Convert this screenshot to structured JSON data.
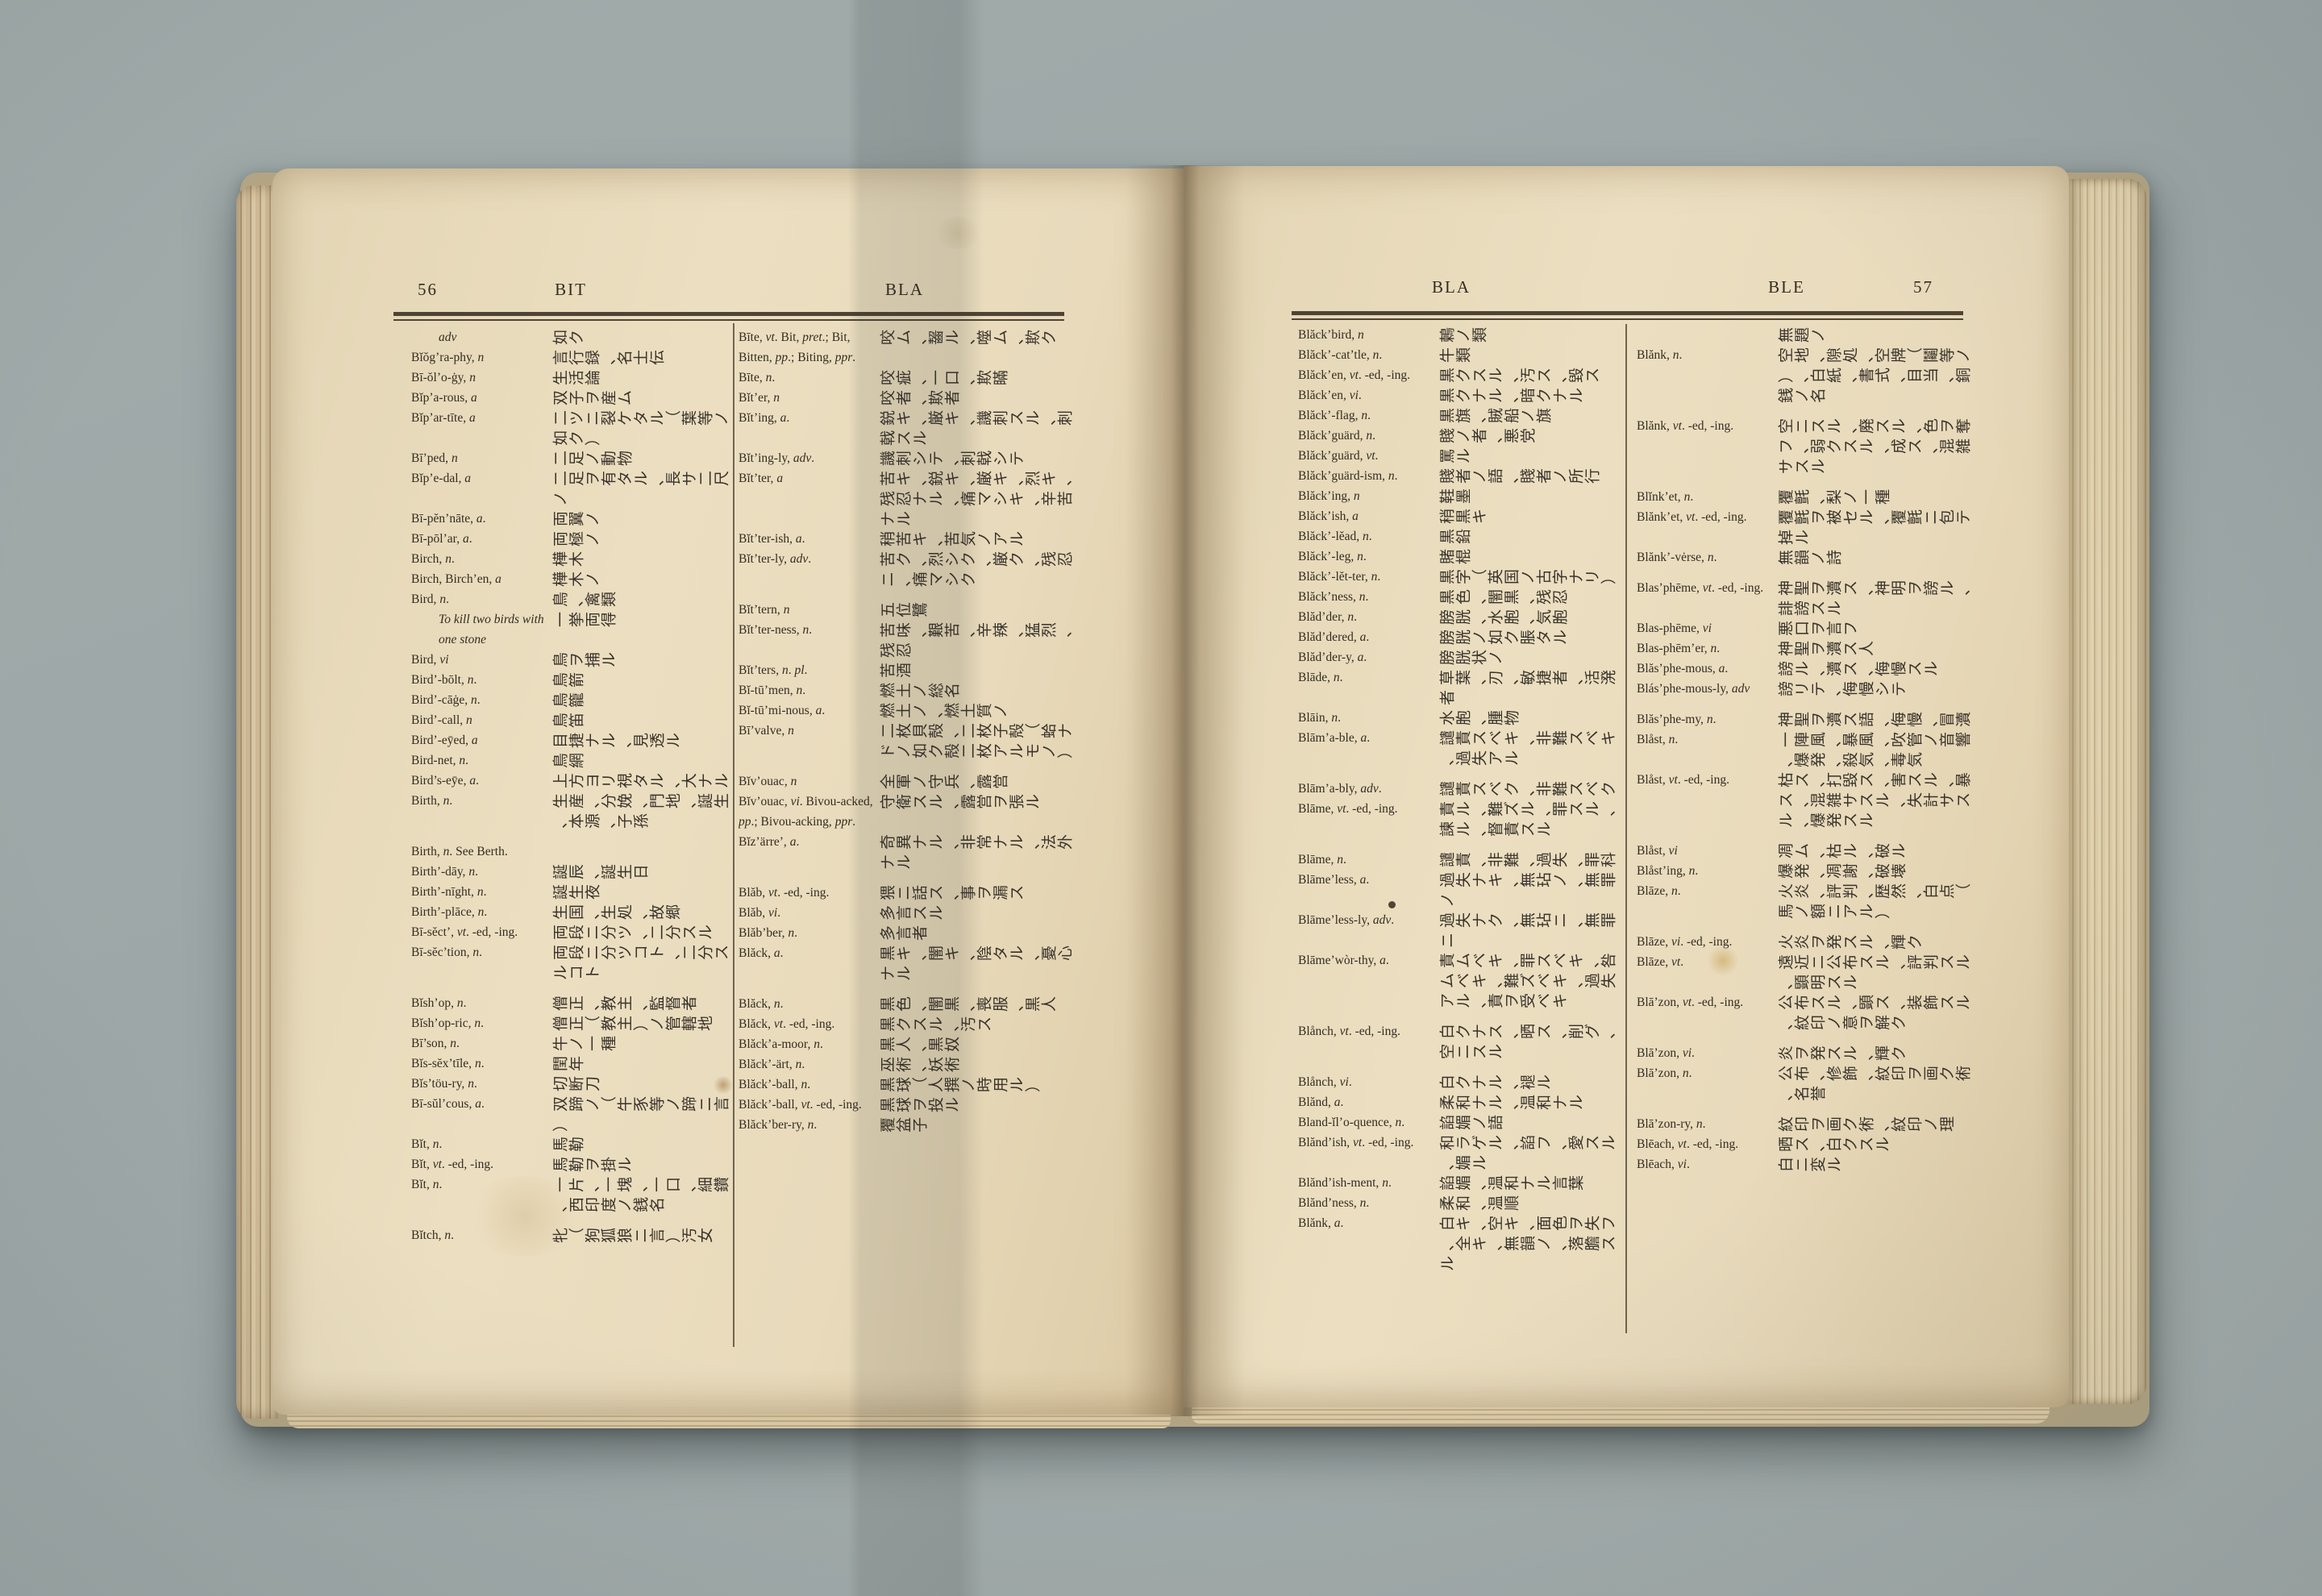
{
  "colors": {
    "bg": "#9faaa9",
    "page": "#e9dcbd",
    "ink": "#332c22",
    "rule": "#42382a",
    "edge": "#cab58e",
    "stain": "#b98f3e"
  },
  "book": {
    "left_page": {
      "number": "56",
      "head_left": "BIT",
      "head_right": "BLA",
      "columns": {
        "col1": [
          {
            "h": "*adv*",
            "d": "如ク",
            "i": 1
          },
          {
            "h": "Bĭŏg’ra-phy, *n*",
            "d": "言行録、名士伝"
          },
          {
            "h": "Bī-ŏl’o-ġy, *n*",
            "d": "生活論"
          },
          {
            "h": "Bĭp’a-rous, *a*",
            "d": "双子ヲ産ム"
          },
          {
            "h": "Bĭp’ar-tīte, *a*",
            "d": "二ツニ裂ケタル（葉等ノ如ク）"
          },
          {
            "h": "Bī’ped, *n*",
            "d": "二足ノ動物"
          },
          {
            "h": "Bĭp’e-dal, *a*",
            "d": "二足ヲ有タル、長サ二尺ノ"
          },
          {
            "h": "Bī-pĕn’nāte, *a*.",
            "d": "両翼ノ"
          },
          {
            "h": "Bī-pōl’ar, *a*.",
            "d": "両極ノ"
          },
          {
            "h": "Birch, *n*.",
            "d": "樺木"
          },
          {
            "h": "Birch, Birch’en, *a*",
            "d": "樺木ノ"
          },
          {
            "h": "Bird, *n*.",
            "d": "鳥、禽類"
          },
          {
            "h": "*To kill two birds with one stone*",
            "d": "一挙両得",
            "i": 1
          },
          {
            "h": "Bird, *vi*",
            "d": "鳥ヲ捕ル"
          },
          {
            "h": "Bird’-bōlt, *n*.",
            "d": "鳥箭"
          },
          {
            "h": "Bird’-cāġe, *n*.",
            "d": "鳥籠"
          },
          {
            "h": "Bird’-call, *n*",
            "d": "鳥笛"
          },
          {
            "h": "Bird’-eȳed, *a*",
            "d": "目捷ナル、見透ル"
          },
          {
            "h": "Bird-net, *n*.",
            "d": "鳥網"
          },
          {
            "h": "Bird’s-eȳe, *a*.",
            "d": "上方ヨリ視タル、大ナル"
          },
          {
            "h": "Birth, *n*.",
            "d": "生産、分娩、門地、誕生、本源、子孫"
          },
          {
            "h": "Birth, *n*. See Berth.",
            "d": "",
            "g": 1
          },
          {
            "h": "Birth’-dāy, *n*.",
            "d": "誕辰、誕生日"
          },
          {
            "h": "Birth’-nīght, *n*.",
            "d": "誕生夜"
          },
          {
            "h": "Birth’-plāce, *n*.",
            "d": "生国、生処、故郷"
          },
          {
            "h": "Bī-sĕct’, *vt*. -ed, -ing.",
            "d": "両段ニ分ツ、二分スル"
          },
          {
            "h": "Bī-sĕc’tion, *n*.",
            "d": "両段ニ分ツコト、二分スルコト"
          },
          {
            "h": "Bĭsh’op, *n*.",
            "d": "僧正、教主、監督者",
            "g": 1
          },
          {
            "h": "Bĭsh’op-ric, *n*.",
            "d": "僧正（教主）ノ管轄地"
          },
          {
            "h": "Bī’son, *n*.",
            "d": "牛ノ一種"
          },
          {
            "h": "Bĭs-sĕx’tīle, *n*.",
            "d": "閏年"
          },
          {
            "h": "Bĭs’töu-ry, *n*.",
            "d": "切断刀"
          },
          {
            "h": "Bī-sŭl’cous, *a*.",
            "d": "双蹄ノ（牛豕等ノ蹄ニ言）"
          },
          {
            "h": "Bĭt, *n*.",
            "d": "馬勒"
          },
          {
            "h": "Bĭt, *vt*. -ed, -ing.",
            "d": "馬勒ヲ掛ル"
          },
          {
            "h": "Bĭt, *n*.",
            "d": "一片、一塊、一口、細鑽、西印度ノ銭名"
          },
          {
            "h": "Bĭtch, *n*.",
            "d": "牝（狗狐狼ニ言）汚女",
            "g": 1
          }
        ],
        "col2": [
          {
            "h": "Bīte, *vt*. Bit, *pret*.; Bit, Bitten, *pp*.; Biting, *ppr*.",
            "d": "咬ム、齧ル、噬ム、欺ク"
          },
          {
            "h": "Bīte, *n*.",
            "d": "咬疵、一口、欺瞞"
          },
          {
            "h": "Bĭt’er, *n*",
            "d": "咬者、欺者"
          },
          {
            "h": "Bĭt’ing, *a*.",
            "d": "鋭キ、厳キ、譏刺スル、刺戟スル"
          },
          {
            "h": "Bĭt’ing-ly, *adv*.",
            "d": "譏刺シテ、刺戟シテ"
          },
          {
            "h": "Bĭt’ter, *a*",
            "d": "苦キ、鋭キ、厳キ、烈キ、残忍ナル、痛マシキ、辛苦ナル"
          },
          {
            "h": "Bĭt’ter-ish, *a*.",
            "d": "稍苦キ、苦気ノアル"
          },
          {
            "h": "Bĭt’ter-ly, *adv*.",
            "d": "苦ク、烈シク、厳ク、残忍ニ、痛マシク"
          },
          {
            "h": "Bĭt’tern, *n*",
            "d": "五位鷺",
            "g": 1
          },
          {
            "h": "Bĭt’ter-ness, *n*.",
            "d": "苦味、艱苦、辛辣、猛烈、残忍"
          },
          {
            "h": "Bĭt’ters, *n*. *pl*.",
            "d": "苦酒"
          },
          {
            "h": "Bĭ-tū’men, *n*.",
            "d": "燃土ノ総名"
          },
          {
            "h": "Bĭ-tū’mi-nous, *a*.",
            "d": "燃土ノ、燃土質ノ"
          },
          {
            "h": "Bī’valve, *n*",
            "d": "二枚貝殻、二枚子殻（蛤ナドノ如ク殻二枚アルモノ）"
          },
          {
            "h": "Bĭv’ouac, *n*",
            "d": "全軍ノ守兵、露営",
            "g": 1
          },
          {
            "h": "Bĭv’ouac, *vi*. Bivou-acked, *pp*.; Bivou-acking, *ppr*.",
            "d": "守衛スル、露営ヲ張ル"
          },
          {
            "h": "Bĭz’ärre’, *a*.",
            "d": "奇異ナル、非常ナル、法外ナル"
          },
          {
            "h": "Blăb, *vt*. -ed, -ing.",
            "d": "猥ニ話ス、事ヲ漏ス",
            "g": 1
          },
          {
            "h": "Blăb, *vi*.",
            "d": "多言スル"
          },
          {
            "h": "Blăb’ber, *n*.",
            "d": "多言者"
          },
          {
            "h": "Blăck, *a*.",
            "d": "黒キ、闇キ、陰タル、憂心ナル"
          },
          {
            "h": "Blăck, *n*.",
            "d": "黒色、闇黒、喪服、黒人",
            "g": 1
          },
          {
            "h": "Blăck, *vt*. -ed, -ing.",
            "d": "黒クスル、汚ス"
          },
          {
            "h": "Blăck’a-moor, *n*.",
            "d": "黒人、黒奴"
          },
          {
            "h": "Blăck’-ärt, *n*.",
            "d": "巫術、妖術"
          },
          {
            "h": "Blăck’-ball, *n*.",
            "d": "黒球（人撰ノ時用ル）"
          },
          {
            "h": "Blăck’-ball, *vt*. -ed, -ing.",
            "d": "黒球ヲ投ル"
          },
          {
            "h": "Blăck’ber-ry, *n*.",
            "d": "覆盆子"
          }
        ]
      }
    },
    "right_page": {
      "number": "57",
      "head_left": "BLA",
      "head_right": "BLE",
      "columns": {
        "col1": [
          {
            "h": "Blăck’bird, *n*",
            "d": "鶫ノ類"
          },
          {
            "h": "Blăck’-cat’tle, *n*.",
            "d": "牛類"
          },
          {
            "h": "Blăck’en, *vt*. -ed, -ing.",
            "d": "黒クスル、汚ス、毀ス"
          },
          {
            "h": "Blăck’en, *vi*.",
            "d": "黒クナル、暗クナル"
          },
          {
            "h": "Blăck’-flag, *n*.",
            "d": "黒旗、賊船ノ旗"
          },
          {
            "h": "Blăck’guärd, *n*.",
            "d": "賤ノ者、悪党"
          },
          {
            "h": "Blăck’guärd, *vt*.",
            "d": "罵ル"
          },
          {
            "h": "Blăck’guärd-ism, *n*.",
            "d": "賤者ノ語、賤者ノ所行"
          },
          {
            "h": "Blăck’ing, *n*",
            "d": "鞋墨"
          },
          {
            "h": "Blăck’ish, *a*",
            "d": "稍黒キ"
          },
          {
            "h": "Blăck’-lĕad, *n*.",
            "d": "黒鉛"
          },
          {
            "h": "Blăck’-leg, *n*.",
            "d": "賭棍"
          },
          {
            "h": "Blăck’-lĕt-ter, *n*.",
            "d": "黒字（英国ノ古字ナリ）"
          },
          {
            "h": "Blăck’ness, *n*.",
            "d": "黒色、闇黒、残忍"
          },
          {
            "h": "Blăd’der, *n*.",
            "d": "膀胱、水胞、気胞"
          },
          {
            "h": "Blăd’dered, *a*.",
            "d": "膀胱ノ如ク脹タル"
          },
          {
            "h": "Blăd’der-y, *a*.",
            "d": "膀胱状ノ"
          },
          {
            "h": "Blāde, *n*.",
            "d": "草葉、刃、敏捷者、活溌者"
          },
          {
            "h": "Blāin, *n*.",
            "d": "水胞、腫物"
          },
          {
            "h": "Blām’a-ble, *a*.",
            "d": "譴責スベキ、非難スベキ、過失アル"
          },
          {
            "h": "Blām’a-bly, *adv*.",
            "d": "譴責スベク、非難スベク",
            "g": 1
          },
          {
            "h": "Blāme, *vt*. -ed, -ing.",
            "d": "責ル、難ズル、罪スル、諫ル、督責スル"
          },
          {
            "h": "Blāme, *n*.",
            "d": "譴責、非難、過失、罪科",
            "g": 1
          },
          {
            "h": "Blāme’less, *a*.",
            "d": "過失ナキ、無玷ノ、無罪ノ"
          },
          {
            "h": "Blāme’less-ly, *adv*.",
            "d": "過失ナク、無玷ニ、無罪ニ"
          },
          {
            "h": "Blāme’wòr-thy, *a*.",
            "d": "責ムベキ、罪スベキ、咎ムベキ、難ズベキ、過失アル、責ヲ受ベキ"
          },
          {
            "h": "Blånch, *vt*. -ed, -ing.",
            "d": "白クナス、晒ス、削グ、空ニスル",
            "g": 1
          },
          {
            "h": "Blånch, *vi*.",
            "d": "白クナル、褪ル",
            "g": 1
          },
          {
            "h": "Blănd, *a*.",
            "d": "柔和ナル、温和ナル"
          },
          {
            "h": "Bland-ĭl’o-quence, *n*.",
            "d": "諂媚ノ語"
          },
          {
            "h": "Blănd’ish, *vt*. -ed, -ing.",
            "d": "和ラゲル、諂フ、愛スル、媚ル"
          },
          {
            "h": "Blănd’ish-ment, *n*.",
            "d": "諂媚、温和ナル言葉"
          },
          {
            "h": "Blănd’ness, *n*.",
            "d": "柔和、温順"
          },
          {
            "h": "Blănk, *a*.",
            "d": "白キ、空キ、面色ヲ失フ、全キ、無韻ノ、落膽スル"
          }
        ],
        "col2": [
          {
            "h": "",
            "d": "無題ノ"
          },
          {
            "h": "Blănk, *n*.",
            "d": "空地、隙処、空牌（鬮等ノ）、白紙、書式、目当、銅銭ノ名"
          },
          {
            "h": "Blănk, *vt*. -ed, -ing.",
            "d": "空ニスル、廃スル、色ヲ奪フ、弱クスル、成ス、混雑サスル",
            "g": 1
          },
          {
            "h": "Blĭnk’et, *n*.",
            "d": "覆氈、梨ノ一種",
            "g": 1
          },
          {
            "h": "Blănk’et, *vt*. -ed, -ing.",
            "d": "覆氈ヲ被セル、覆氈ニ包テ掉ル"
          },
          {
            "h": "Blănk’-vėrse, *n*.",
            "d": "無韻ノ詩"
          },
          {
            "h": "Blas’phēme, *vt*. -ed, -ing.",
            "d": "神聖ヲ瀆ス、神明ヲ謗ル、誹謗スル",
            "g": 1
          },
          {
            "h": "Blas-phēme, *vi*",
            "d": "悪口ヲ言フ"
          },
          {
            "h": "Blas-phēm’er, *n*.",
            "d": "神聖ヲ瀆ス人"
          },
          {
            "h": "Blăs’phe-mous, *a*.",
            "d": "謗ル、瀆ス、侮慢スル"
          },
          {
            "h": "Blás’phe-mous-ly, *adv*",
            "d": "謗リテ、侮慢シテ"
          },
          {
            "h": "Blăs’phe-my, *n*.",
            "d": "神聖ヲ瀆ス語、侮慢、冒瀆",
            "g": 1
          },
          {
            "h": "Blåst, *n*.",
            "d": "一陣風、暴風、吹管ノ音響、爆発、殺気、毒気"
          },
          {
            "h": "Blåst, *vt*. -ed, -ing.",
            "d": "枯ス、打毀ス、害スル、暴ス、混雑サスル、失計サスル、爆発スル"
          },
          {
            "h": "Blåst, *vi*",
            "d": "凋ム、枯ル、破ル",
            "g": 1
          },
          {
            "h": "Blåst’ing, *n*.",
            "d": "爆発、凋謝、破壊"
          },
          {
            "h": "Blāze, *n*.",
            "d": "火炎、評判、歴然、白点（馬ノ額ニアル）"
          },
          {
            "h": "Blāze, *vi*. -ed, -ing.",
            "d": "火炎ヲ発スル、輝ク",
            "g": 1
          },
          {
            "h": "Blāze, *vt*.",
            "d": "遠近ニ公布スル、評判スル、顕明スル"
          },
          {
            "h": "Blā’zon, *vt*. -ed, -ing.",
            "d": "公布スル、顕ス、装飾スル、紋印ノ意ヲ解ク"
          },
          {
            "h": "Blā’zon, *vi*.",
            "d": "炎ヲ発スル、輝ク",
            "g": 1
          },
          {
            "h": "Blā’zon, *n*.",
            "d": "公布、修飾、紋印ヲ画ク術、名誉"
          },
          {
            "h": "Blā’zon-ry, *n*.",
            "d": "紋印ヲ画ク術、紋印ノ理",
            "g": 1
          },
          {
            "h": "Blēach, *vt*. -ed, -ing.",
            "d": "晒ス、白クスル"
          },
          {
            "h": "Blēach, *vi*.",
            "d": "白ニ変ル"
          }
        ]
      }
    }
  }
}
